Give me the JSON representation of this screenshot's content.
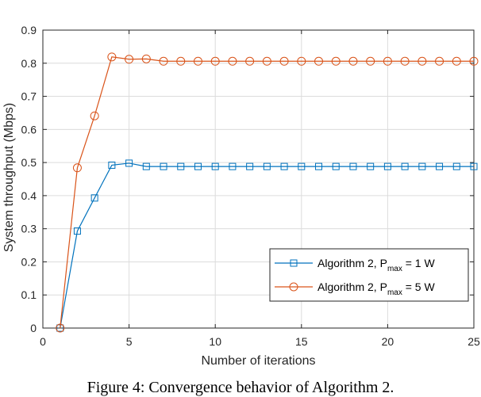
{
  "chart_data": {
    "type": "line",
    "title": "",
    "xlabel": "Number of iterations",
    "ylabel": "System throughput (Mbps)",
    "xlim": [
      0,
      25
    ],
    "ylim": [
      0,
      0.9
    ],
    "xticks": [
      0,
      5,
      10,
      15,
      20,
      25
    ],
    "yticks": [
      0,
      0.1,
      0.2,
      0.3,
      0.4,
      0.5,
      0.6,
      0.7,
      0.8,
      0.9
    ],
    "grid": true,
    "legend_position": "lower-right",
    "x": [
      1,
      2,
      3,
      4,
      5,
      6,
      7,
      8,
      9,
      10,
      11,
      12,
      13,
      14,
      15,
      16,
      17,
      18,
      19,
      20,
      21,
      22,
      23,
      24,
      25
    ],
    "series": [
      {
        "name": "Algorithm 2, P",
        "name_sub": "max",
        "name_suffix": " = 1 W",
        "color": "#0072BD",
        "marker": "square",
        "values": [
          0,
          0.293,
          0.393,
          0.492,
          0.498,
          0.488,
          0.488,
          0.488,
          0.488,
          0.488,
          0.488,
          0.488,
          0.488,
          0.488,
          0.488,
          0.488,
          0.488,
          0.488,
          0.488,
          0.488,
          0.488,
          0.488,
          0.488,
          0.488,
          0.488
        ]
      },
      {
        "name": "Algorithm 2, P",
        "name_sub": "max",
        "name_suffix": " = 5 W",
        "color": "#D95319",
        "marker": "circle",
        "values": [
          0,
          0.484,
          0.641,
          0.819,
          0.812,
          0.813,
          0.806,
          0.806,
          0.806,
          0.806,
          0.806,
          0.806,
          0.806,
          0.806,
          0.806,
          0.806,
          0.806,
          0.806,
          0.806,
          0.806,
          0.806,
          0.806,
          0.806,
          0.806,
          0.806
        ]
      }
    ]
  },
  "caption": "Figure 4: Convergence behavior of Algorithm 2."
}
